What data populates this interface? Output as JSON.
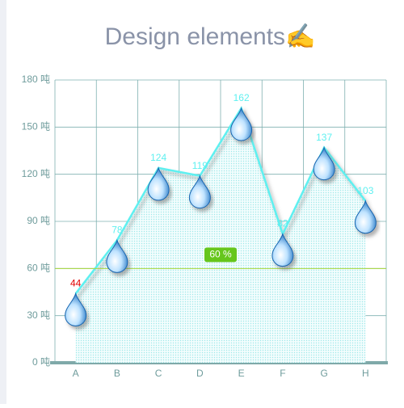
{
  "chart_data": {
    "type": "line",
    "title": "Design elements✍️",
    "categories": [
      "A",
      "B",
      "C",
      "D",
      "E",
      "F",
      "G",
      "H"
    ],
    "values": [
      44,
      78,
      124,
      119,
      162,
      82,
      137,
      103
    ],
    "color": "#5ef0f0",
    "label_color": "#5ef0f0",
    "min_label_color": "#e00000",
    "ylim": [
      0,
      180
    ],
    "yticks": [
      {
        "value": 0,
        "label": "0 吨"
      },
      {
        "value": 30,
        "label": "30 吨"
      },
      {
        "value": 60,
        "label": "60 吨"
      },
      {
        "value": 90,
        "label": "90 吨"
      },
      {
        "value": 120,
        "label": "120 吨"
      },
      {
        "value": 150,
        "label": "150 吨"
      },
      {
        "value": 180,
        "label": "180 吨"
      }
    ],
    "mark_line": {
      "value": 60,
      "label": "60 %"
    },
    "grid": true
  }
}
